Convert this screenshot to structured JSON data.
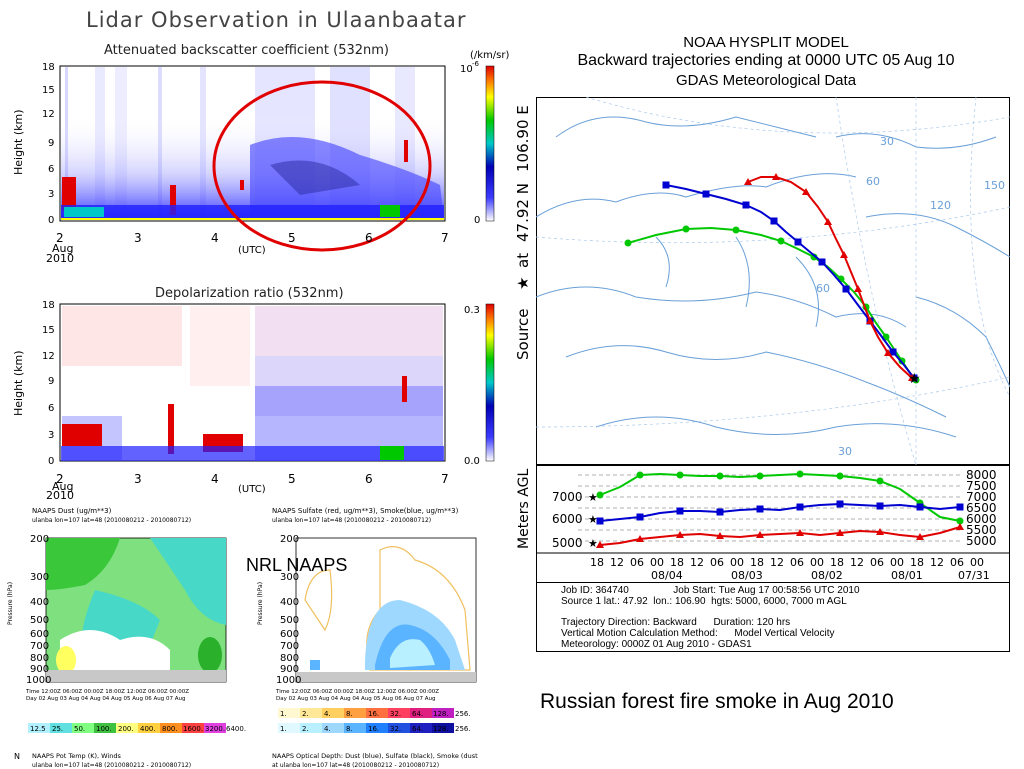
{
  "lidar": {
    "title": "Lidar Observation in Ulaanbaatar",
    "backscatter": {
      "title": "Attenuated backscatter coefficient (532nm)",
      "ylabel": "Height (km)",
      "yticks": [
        "18",
        "15",
        "12",
        "9",
        "6",
        "3",
        "0"
      ],
      "xticks": [
        "2",
        "3",
        "4",
        "5",
        "6",
        "7"
      ],
      "date_month": "Aug",
      "date_year": "2010",
      "xlabel": "(UTC)",
      "cbar_unit": "(/km/sr)",
      "cbar_top": "10",
      "cbar_top_exp": "-6",
      "cbar_bottom": "0"
    },
    "depol": {
      "title": "Depolarization ratio (532nm)",
      "ylabel": "Height (km)",
      "yticks": [
        "18",
        "15",
        "12",
        "9",
        "6",
        "3",
        "0"
      ],
      "xticks": [
        "2",
        "3",
        "4",
        "5",
        "6",
        "7"
      ],
      "date_month": "Aug",
      "date_year": "2010",
      "xlabel": "(UTC)",
      "cbar_top": "0.3",
      "cbar_bottom": "0.0"
    }
  },
  "naaps": {
    "overlay_label": "NRL NAAPS",
    "dust": {
      "title": "NAAPS Dust (ug/m**3)",
      "subtitle": "ulanba lon=107 lat=48 (2010080212 - 2010080712)",
      "yticks": [
        "200",
        "300",
        "400",
        "500",
        "600",
        "700",
        "800",
        "900",
        "1000"
      ],
      "time_row": "Time 12:00Z  06:00Z  00:00Z  18:00Z  12:00Z  06:00Z  00:00Z",
      "day_row": "Day  02 Aug  03 Aug  04 Aug  04 Aug  05 Aug  06 Aug  07 Aug",
      "scale": [
        "12.5",
        "25.",
        "50.",
        "100.",
        "200.",
        "400.",
        "800.",
        "1600.",
        "3200.",
        "6400."
      ],
      "ylabel": "Pressure (hPa)"
    },
    "sulfate": {
      "title": "NAAPS Sulfate (red, ug/m**3), Smoke(blue, ug/m**3)",
      "subtitle": "ulanba lon=107 lat=48 (2010080212 - 2010080712)",
      "yticks": [
        "200",
        "300",
        "400",
        "500",
        "600",
        "700",
        "800",
        "900",
        "1000"
      ],
      "time_row": "Time 12:00Z  06:00Z  00:00Z  18:00Z  12:00Z  06:00Z  00:00Z",
      "day_row": "Day  02 Aug  03 Aug  04 Aug  04 Aug  05 Aug  06 Aug  07 Aug",
      "scale_a": [
        "1.",
        "2.",
        "4.",
        "8.",
        "16.",
        "32.",
        "64.",
        "128.",
        "256."
      ],
      "scale_b": [
        "1.",
        "2.",
        "4.",
        "8.",
        "16.",
        "32.",
        "64.",
        "128.",
        "256."
      ],
      "ylabel": "Pressure (hPa)"
    },
    "pot_temp": {
      "prefix": "N",
      "title": "NAAPS Pot Temp (K), Winds",
      "subtitle": "ulanba lon=107 lat=48 (2010080212 - 2010080712)"
    },
    "optical": {
      "title": "NAAPS Optical Depth: Dust (blue), Sulfate (black), Smoke (dust",
      "subtitle": "at ulanba lon=107 lat=48 (2010080212 - 2010080712)"
    }
  },
  "hysplit": {
    "title1": "NOAA HYSPLIT MODEL",
    "title2": "Backward trajectories ending at 0000 UTC 05 Aug 10",
    "title3": "GDAS Meteorological Data",
    "side_label_a": "Source",
    "side_label_b": "at",
    "side_label_lat": "47.92 N",
    "side_label_lon": "106.90 E",
    "lat_labels": [
      "30",
      "60",
      "150",
      "120",
      "60",
      "30"
    ],
    "ylabel": "Meters AGL",
    "left_levels": [
      "7000",
      "6000",
      "5000"
    ],
    "right_levels": [
      "8000",
      "7500",
      "7000",
      "6500",
      "6000",
      "5500",
      "5000"
    ],
    "hour_ticks": [
      "18",
      "12",
      "06",
      "00",
      "18",
      "12",
      "06",
      "00",
      "18",
      "12",
      "06",
      "00",
      "18",
      "12",
      "06",
      "00",
      "18",
      "12",
      "06",
      "00"
    ],
    "date_ticks": [
      "08/04",
      "08/03",
      "08/02",
      "08/01",
      "07/31"
    ],
    "info": [
      "Job ID: 364740                Job Start: Tue Aug 17 00:58:56 UTC 2010",
      "Source 1 lat.: 47.92  lon.: 106.90  hgts: 5000, 6000, 7000 m AGL",
      "",
      "Trajectory Direction: Backward      Duration: 120 hrs",
      "Vertical Motion Calculation Method:      Model Vertical Velocity",
      "Meteorology: 0000Z 01 Aug 2010 - GDAS1"
    ],
    "colors": {
      "high": "#00c800",
      "mid": "#0000d0",
      "low": "#e00000"
    }
  },
  "caption": "Russian forest fire smoke in Aug 2010"
}
